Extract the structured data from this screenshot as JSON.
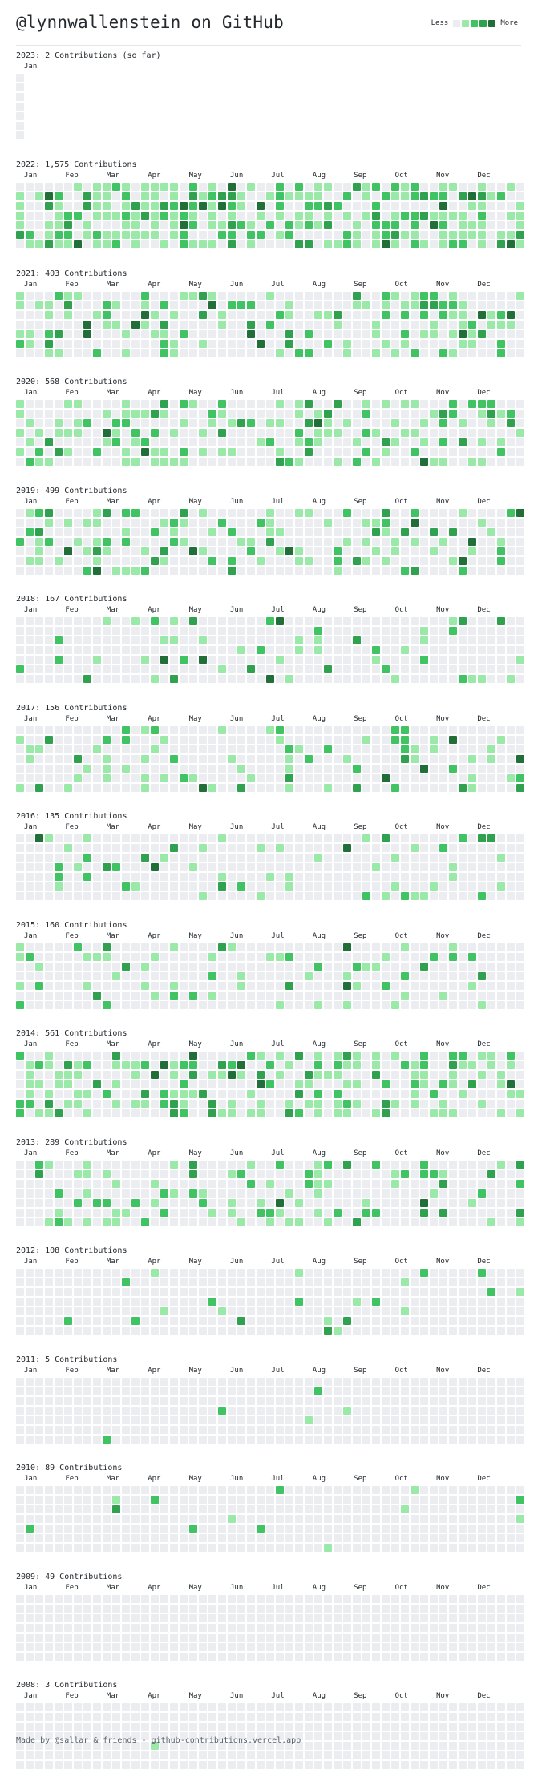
{
  "header": {
    "title": "@lynnwallenstein on GitHub",
    "legend_less": "Less",
    "legend_more": "More"
  },
  "colors": [
    "#ebedf0",
    "#9be9a8",
    "#40c463",
    "#30a14e",
    "#216e39"
  ],
  "years": [
    {
      "label": "2023: 2 Contributions (so far)",
      "months": [
        "Jan"
      ],
      "weeks": 1,
      "seed": 2023,
      "density": 0.02
    },
    {
      "label": "2022: 1,575 Contributions",
      "months": [
        "Jan",
        "Feb",
        "Mar",
        "Apr",
        "May",
        "Jun",
        "Jul",
        "Aug",
        "Sep",
        "Oct",
        "Nov",
        "Dec"
      ],
      "weeks": 53,
      "seed": 2022,
      "density": 0.62
    },
    {
      "label": "2021: 403 Contributions",
      "months": [
        "Jan",
        "Feb",
        "Mar",
        "Apr",
        "May",
        "Jun",
        "Jul",
        "Aug",
        "Sep",
        "Oct",
        "Nov",
        "Dec"
      ],
      "weeks": 53,
      "seed": 2021,
      "density": 0.32
    },
    {
      "label": "2020: 568 Contributions",
      "months": [
        "Jan",
        "Feb",
        "Mar",
        "Apr",
        "May",
        "Jun",
        "Jul",
        "Aug",
        "Sep",
        "Oct",
        "Nov",
        "Dec"
      ],
      "weeks": 53,
      "seed": 2020,
      "density": 0.38
    },
    {
      "label": "2019: 499 Contributions",
      "months": [
        "Jan",
        "Feb",
        "Mar",
        "Apr",
        "May",
        "Jun",
        "Jul",
        "Aug",
        "Sep",
        "Oct",
        "Nov",
        "Dec"
      ],
      "weeks": 53,
      "seed": 2019,
      "density": 0.34
    },
    {
      "label": "2018: 167 Contributions",
      "months": [
        "Jan",
        "Feb",
        "Mar",
        "Apr",
        "May",
        "Jun",
        "Jul",
        "Aug",
        "Sep",
        "Oct",
        "Nov",
        "Dec"
      ],
      "weeks": 53,
      "seed": 2018,
      "density": 0.16
    },
    {
      "label": "2017: 156 Contributions",
      "months": [
        "Jan",
        "Feb",
        "Mar",
        "Apr",
        "May",
        "Jun",
        "Jul",
        "Aug",
        "Sep",
        "Oct",
        "Nov",
        "Dec"
      ],
      "weeks": 53,
      "seed": 2017,
      "density": 0.2
    },
    {
      "label": "2016: 135 Contributions",
      "months": [
        "Jan",
        "Feb",
        "Mar",
        "Apr",
        "May",
        "Jun",
        "Jul",
        "Aug",
        "Sep",
        "Oct",
        "Nov",
        "Dec"
      ],
      "weeks": 53,
      "seed": 2016,
      "density": 0.16
    },
    {
      "label": "2015: 160 Contributions",
      "months": [
        "Jan",
        "Feb",
        "Mar",
        "Apr",
        "May",
        "Jun",
        "Jul",
        "Aug",
        "Sep",
        "Oct",
        "Nov",
        "Dec"
      ],
      "weeks": 53,
      "seed": 2015,
      "density": 0.18
    },
    {
      "label": "2014: 561 Contributions",
      "months": [
        "Jan",
        "Feb",
        "Mar",
        "Apr",
        "May",
        "Jun",
        "Jul",
        "Aug",
        "Sep",
        "Oct",
        "Nov",
        "Dec"
      ],
      "weeks": 53,
      "seed": 2014,
      "density": 0.45
    },
    {
      "label": "2013: 289 Contributions",
      "months": [
        "Jan",
        "Feb",
        "Mar",
        "Apr",
        "May",
        "Jun",
        "Jul",
        "Aug",
        "Sep",
        "Oct",
        "Nov",
        "Dec"
      ],
      "weeks": 53,
      "seed": 2013,
      "density": 0.28
    },
    {
      "label": "2012: 108 Contributions",
      "months": [
        "Jan",
        "Feb",
        "Mar",
        "Apr",
        "May",
        "Jun",
        "Jul",
        "Aug",
        "Sep",
        "Oct",
        "Nov",
        "Dec"
      ],
      "weeks": 53,
      "seed": 2012,
      "density": 0.05
    },
    {
      "label": "2011: 5 Contributions",
      "months": [
        "Jan",
        "Feb",
        "Mar",
        "Apr",
        "May",
        "Jun",
        "Jul",
        "Aug",
        "Sep",
        "Oct",
        "Nov",
        "Dec"
      ],
      "weeks": 53,
      "seed": 2011,
      "density": 0.012
    },
    {
      "label": "2010: 89 Contributions",
      "months": [
        "Jan",
        "Feb",
        "Mar",
        "Apr",
        "May",
        "Jun",
        "Jul",
        "Aug",
        "Sep",
        "Oct",
        "Nov",
        "Dec"
      ],
      "weeks": 53,
      "seed": 2010,
      "density": 0.03
    },
    {
      "label": "2009: 49 Contributions",
      "months": [
        "Jan",
        "Feb",
        "Mar",
        "Apr",
        "May",
        "Jun",
        "Jul",
        "Aug",
        "Sep",
        "Oct",
        "Nov",
        "Dec"
      ],
      "weeks": 53,
      "seed": 2009,
      "density": 0.004
    },
    {
      "label": "2008: 3 Contributions",
      "months": [
        "Jan",
        "Feb",
        "Mar",
        "Apr",
        "May",
        "Jun",
        "Jul",
        "Aug",
        "Sep",
        "Oct",
        "Nov",
        "Dec"
      ],
      "weeks": 53,
      "seed": 2008,
      "density": 0.008
    }
  ],
  "footer": "Made by @sallar & friends - github-contributions.vercel.app"
}
